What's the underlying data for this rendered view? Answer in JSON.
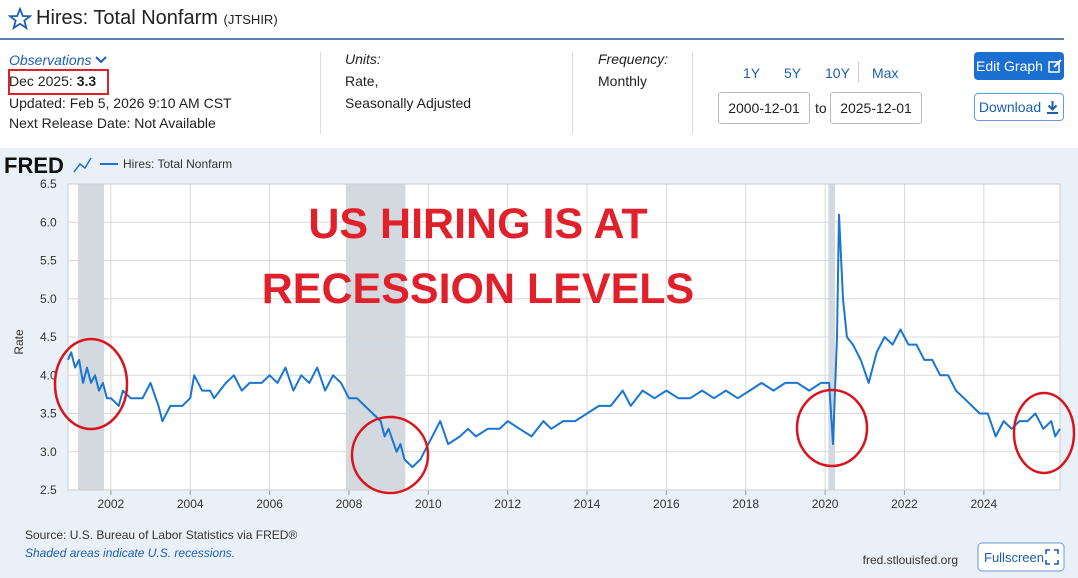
{
  "header": {
    "title": "Hires: Total Nonfarm",
    "series_id": "(JTSHIR)"
  },
  "observations": {
    "label": "Observations",
    "latest_label": "Dec 2025:",
    "latest_value": "3.3",
    "updated": "Updated: Feb 5, 2026 9:10 AM CST",
    "next_release": "Next Release Date: Not Available"
  },
  "units": {
    "label": "Units:",
    "lines": [
      "Rate,",
      "Seasonally Adjusted"
    ]
  },
  "frequency": {
    "label": "Frequency:",
    "value": "Monthly"
  },
  "ranges": [
    "1Y",
    "5Y",
    "10Y",
    "Max"
  ],
  "dates": {
    "from": "2000-12-01",
    "to_label": "to",
    "to": "2025-12-01"
  },
  "buttons": {
    "edit": "Edit Graph",
    "download": "Download",
    "fullscreen": "Fullscreen"
  },
  "footer": {
    "site": "fred.stlouisfed.org"
  },
  "chart_data": {
    "type": "line",
    "logo": "FRED",
    "ylabel": "Rate",
    "annotation": [
      "US HIRING IS AT",
      "RECESSION LEVELS"
    ],
    "source": "Source: U.S. Bureau of Labor Statistics via FRED®",
    "note": "Shaded areas indicate U.S. recessions.",
    "xlim": [
      2000.92,
      2025.92
    ],
    "ylim": [
      2.5,
      6.5
    ],
    "xticks": [
      2002,
      2004,
      2006,
      2008,
      2010,
      2012,
      2014,
      2016,
      2018,
      2020,
      2022,
      2024
    ],
    "yticks": [
      2.5,
      {
        "value": 3,
        "label": "3.0"
      },
      3.5,
      {
        "value": 4,
        "label": "4.0"
      },
      4.5,
      {
        "value": 5,
        "label": "5.0"
      },
      5.5,
      {
        "value": 6,
        "label": "6.0"
      },
      6.5
    ],
    "grid": true,
    "recessions": [
      [
        2001.17,
        2001.83
      ],
      [
        2007.92,
        2009.42
      ],
      [
        2020.08,
        2020.25
      ]
    ],
    "x": [
      2000.92,
      2001.0,
      2001.1,
      2001.2,
      2001.3,
      2001.4,
      2001.5,
      2001.6,
      2001.7,
      2001.8,
      2001.9,
      2002.0,
      2002.2,
      2002.3,
      2002.5,
      2002.8,
      2003.0,
      2003.2,
      2003.3,
      2003.5,
      2003.8,
      2004.0,
      2004.1,
      2004.3,
      2004.5,
      2004.6,
      2004.9,
      2005.1,
      2005.3,
      2005.5,
      2005.8,
      2006.0,
      2006.2,
      2006.4,
      2006.6,
      2006.8,
      2007.0,
      2007.2,
      2007.4,
      2007.6,
      2007.8,
      2008.0,
      2008.2,
      2008.4,
      2008.6,
      2008.8,
      2008.9,
      2009.0,
      2009.2,
      2009.3,
      2009.4,
      2009.6,
      2009.8,
      2009.9,
      2010.1,
      2010.3,
      2010.5,
      2010.8,
      2011.0,
      2011.2,
      2011.5,
      2011.8,
      2012.0,
      2012.3,
      2012.6,
      2012.9,
      2013.1,
      2013.4,
      2013.7,
      2014.0,
      2014.3,
      2014.6,
      2014.9,
      2015.1,
      2015.4,
      2015.7,
      2016.0,
      2016.3,
      2016.6,
      2016.9,
      2017.2,
      2017.5,
      2017.8,
      2018.1,
      2018.4,
      2018.7,
      2019.0,
      2019.3,
      2019.6,
      2019.9,
      2020.1,
      2020.2,
      2020.3,
      2020.35,
      2020.45,
      2020.55,
      2020.7,
      2020.9,
      2021.1,
      2021.3,
      2021.5,
      2021.7,
      2021.9,
      2022.1,
      2022.3,
      2022.5,
      2022.7,
      2022.9,
      2023.1,
      2023.3,
      2023.5,
      2023.7,
      2023.9,
      2024.1,
      2024.3,
      2024.5,
      2024.7,
      2024.9,
      2025.1,
      2025.3,
      2025.5,
      2025.7,
      2025.8,
      2025.92
    ],
    "series": [
      {
        "name": "Hires: Total Nonfarm",
        "color": "#1a76d2",
        "values": [
          4.2,
          4.3,
          4.1,
          4.2,
          3.9,
          4.1,
          3.9,
          4.0,
          3.8,
          3.9,
          3.7,
          3.7,
          3.6,
          3.8,
          3.7,
          3.7,
          3.9,
          3.6,
          3.4,
          3.6,
          3.6,
          3.7,
          4.0,
          3.8,
          3.8,
          3.7,
          3.9,
          4.0,
          3.8,
          3.9,
          3.9,
          4.0,
          3.9,
          4.1,
          3.8,
          4.0,
          3.9,
          4.1,
          3.8,
          4.0,
          3.9,
          3.7,
          3.7,
          3.6,
          3.5,
          3.4,
          3.2,
          3.3,
          3.0,
          3.1,
          2.9,
          2.8,
          2.9,
          3.0,
          3.2,
          3.4,
          3.1,
          3.2,
          3.3,
          3.2,
          3.3,
          3.3,
          3.4,
          3.3,
          3.2,
          3.4,
          3.3,
          3.4,
          3.4,
          3.5,
          3.6,
          3.6,
          3.8,
          3.6,
          3.8,
          3.7,
          3.8,
          3.7,
          3.7,
          3.8,
          3.7,
          3.8,
          3.7,
          3.8,
          3.9,
          3.8,
          3.9,
          3.9,
          3.8,
          3.9,
          3.9,
          3.1,
          4.5,
          6.1,
          5.0,
          4.5,
          4.4,
          4.2,
          3.9,
          4.3,
          4.5,
          4.4,
          4.6,
          4.4,
          4.4,
          4.2,
          4.2,
          4.0,
          4.0,
          3.8,
          3.7,
          3.6,
          3.5,
          3.5,
          3.2,
          3.4,
          3.3,
          3.4,
          3.4,
          3.5,
          3.3,
          3.4,
          3.2,
          3.3
        ]
      }
    ]
  }
}
